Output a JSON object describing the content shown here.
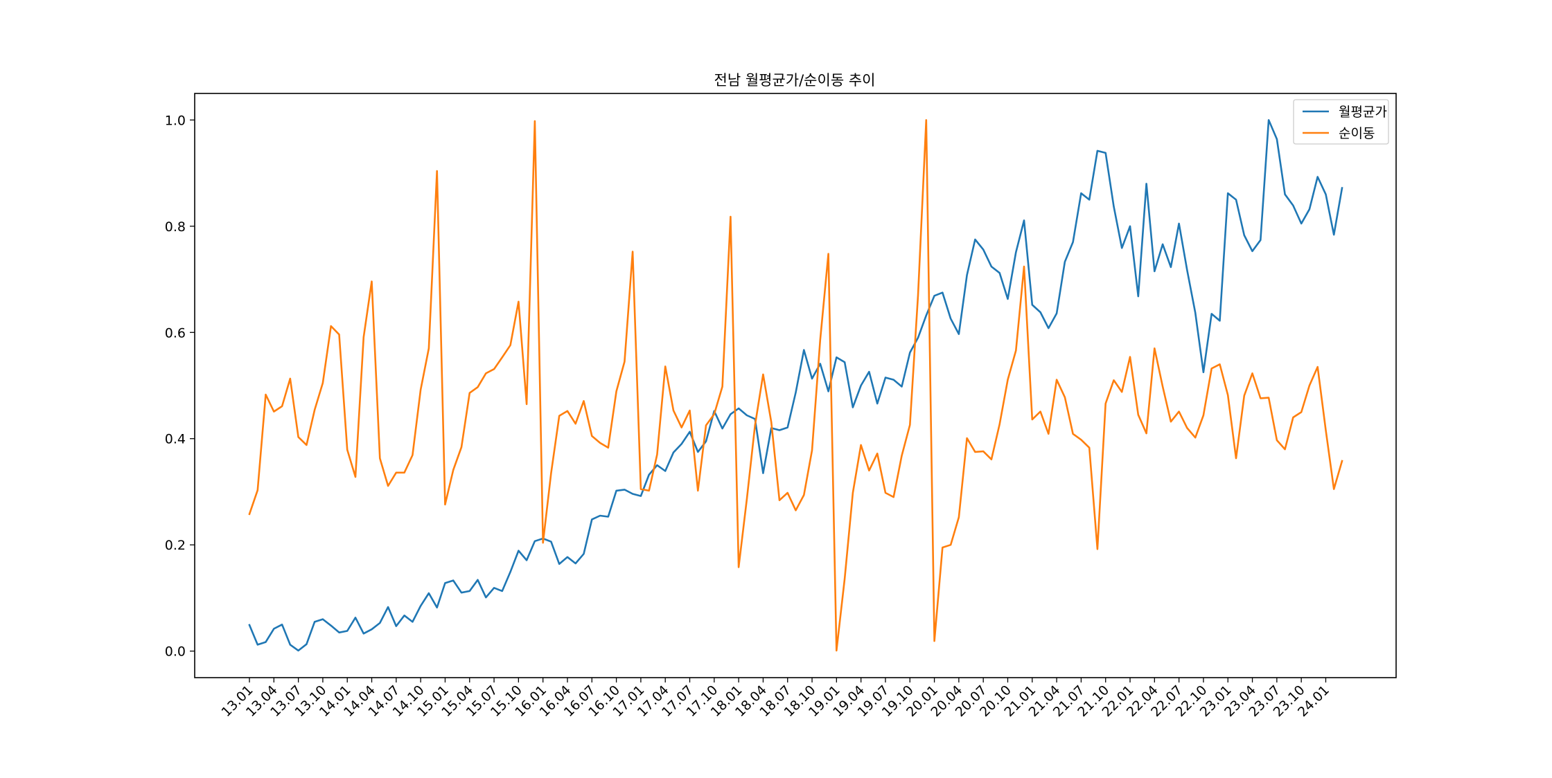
{
  "chart_data": {
    "type": "line",
    "title": "전남 월평균가/순이동 추이",
    "xlabel": "",
    "ylabel": "",
    "ylim": [
      -0.05,
      1.05
    ],
    "yticks": [
      0.0,
      0.2,
      0.4,
      0.6,
      0.8,
      1.0
    ],
    "ytick_labels": [
      "0.0",
      "0.2",
      "0.4",
      "0.6",
      "0.8",
      "1.0"
    ],
    "xtick_labels": [
      "13.01",
      "13.04",
      "13.07",
      "13.10",
      "14.01",
      "14.04",
      "14.07",
      "14.10",
      "15.01",
      "15.04",
      "15.07",
      "15.10",
      "16.01",
      "16.04",
      "16.07",
      "16.10",
      "17.01",
      "17.04",
      "17.07",
      "17.10",
      "18.01",
      "18.04",
      "18.07",
      "18.10",
      "19.01",
      "19.04",
      "19.07",
      "19.10",
      "20.01",
      "20.04",
      "20.07",
      "20.10",
      "21.01",
      "21.04",
      "21.07",
      "21.10",
      "22.01",
      "22.04",
      "22.07",
      "22.10",
      "23.01",
      "23.04",
      "23.07",
      "23.10",
      "24.01"
    ],
    "xtick_step": 3,
    "grid": false,
    "legend_position": "top-right",
    "series": [
      {
        "name": "월평균가",
        "color": "#1f77b4",
        "values": [
          0.049,
          0.012,
          0.017,
          0.042,
          0.05,
          0.012,
          0.001,
          0.013,
          0.055,
          0.06,
          0.048,
          0.035,
          0.038,
          0.063,
          0.033,
          0.041,
          0.053,
          0.083,
          0.047,
          0.067,
          0.055,
          0.085,
          0.109,
          0.082,
          0.128,
          0.133,
          0.11,
          0.113,
          0.134,
          0.101,
          0.119,
          0.113,
          0.149,
          0.189,
          0.171,
          0.207,
          0.212,
          0.206,
          0.164,
          0.177,
          0.165,
          0.183,
          0.248,
          0.255,
          0.253,
          0.302,
          0.304,
          0.296,
          0.292,
          0.332,
          0.35,
          0.339,
          0.374,
          0.39,
          0.413,
          0.375,
          0.395,
          0.452,
          0.419,
          0.446,
          0.457,
          0.444,
          0.437,
          0.335,
          0.42,
          0.416,
          0.421,
          0.487,
          0.567,
          0.513,
          0.541,
          0.489,
          0.553,
          0.544,
          0.459,
          0.5,
          0.526,
          0.466,
          0.515,
          0.511,
          0.498,
          0.562,
          0.59,
          0.632,
          0.669,
          0.675,
          0.626,
          0.597,
          0.708,
          0.775,
          0.756,
          0.724,
          0.712,
          0.663,
          0.751,
          0.811,
          0.652,
          0.638,
          0.608,
          0.636,
          0.733,
          0.77,
          0.862,
          0.85,
          0.942,
          0.938,
          0.837,
          0.759,
          0.8,
          0.668,
          0.88,
          0.715,
          0.766,
          0.723,
          0.805,
          0.717,
          0.637,
          0.525,
          0.635,
          0.622,
          0.862,
          0.85,
          0.783,
          0.753,
          0.774,
          1.0,
          0.964,
          0.86,
          0.839,
          0.805,
          0.832,
          0.893,
          0.86,
          0.784,
          0.872
        ]
      },
      {
        "name": "순이동",
        "color": "#ff7f0e",
        "values": [
          0.258,
          0.303,
          0.483,
          0.451,
          0.461,
          0.513,
          0.403,
          0.388,
          0.454,
          0.505,
          0.612,
          0.596,
          0.379,
          0.328,
          0.591,
          0.696,
          0.363,
          0.311,
          0.336,
          0.336,
          0.369,
          0.492,
          0.57,
          0.904,
          0.276,
          0.341,
          0.384,
          0.486,
          0.497,
          0.523,
          0.531,
          0.553,
          0.576,
          0.658,
          0.465,
          0.998,
          0.204,
          0.335,
          0.443,
          0.452,
          0.428,
          0.471,
          0.405,
          0.392,
          0.383,
          0.489,
          0.545,
          0.752,
          0.305,
          0.302,
          0.37,
          0.536,
          0.453,
          0.421,
          0.453,
          0.302,
          0.425,
          0.446,
          0.498,
          0.818,
          0.158,
          0.286,
          0.425,
          0.521,
          0.431,
          0.284,
          0.298,
          0.265,
          0.294,
          0.378,
          0.586,
          0.748,
          0.001,
          0.136,
          0.298,
          0.388,
          0.34,
          0.372,
          0.298,
          0.29,
          0.368,
          0.426,
          0.67,
          1.0,
          0.019,
          0.195,
          0.2,
          0.252,
          0.401,
          0.375,
          0.376,
          0.361,
          0.427,
          0.511,
          0.566,
          0.724,
          0.436,
          0.451,
          0.409,
          0.511,
          0.478,
          0.409,
          0.398,
          0.383,
          0.192,
          0.466,
          0.51,
          0.488,
          0.554,
          0.445,
          0.41,
          0.57,
          0.498,
          0.432,
          0.451,
          0.42,
          0.402,
          0.444,
          0.532,
          0.54,
          0.482,
          0.363,
          0.481,
          0.523,
          0.476,
          0.477,
          0.397,
          0.38,
          0.44,
          0.45,
          0.5,
          0.535,
          0.416,
          0.305,
          0.358
        ]
      }
    ]
  }
}
